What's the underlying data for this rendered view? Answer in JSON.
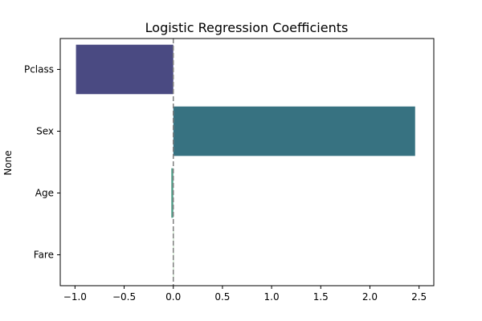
{
  "chart_data": {
    "type": "bar",
    "orientation": "horizontal",
    "title": "Logistic Regression Coefficients",
    "xlabel": "",
    "ylabel": "None",
    "categories": [
      "Pclass",
      "Sex",
      "Age",
      "Fare"
    ],
    "values": [
      -0.99,
      2.46,
      -0.02,
      0.002
    ],
    "colors": [
      "#4a4a82",
      "#377281",
      "#4f9d88",
      "#7fc580"
    ],
    "xlim": [
      -1.15,
      2.65
    ],
    "xticks": [
      -1.0,
      -0.5,
      0.0,
      0.5,
      1.0,
      1.5,
      2.0,
      2.5
    ],
    "xtick_labels": [
      "−1.0",
      "−0.5",
      "0.0",
      "0.5",
      "1.0",
      "1.5",
      "2.0",
      "2.5"
    ],
    "reference_line": {
      "x": 0,
      "style": "dashed",
      "color": "#808080"
    },
    "grid": false,
    "legend": "none"
  }
}
